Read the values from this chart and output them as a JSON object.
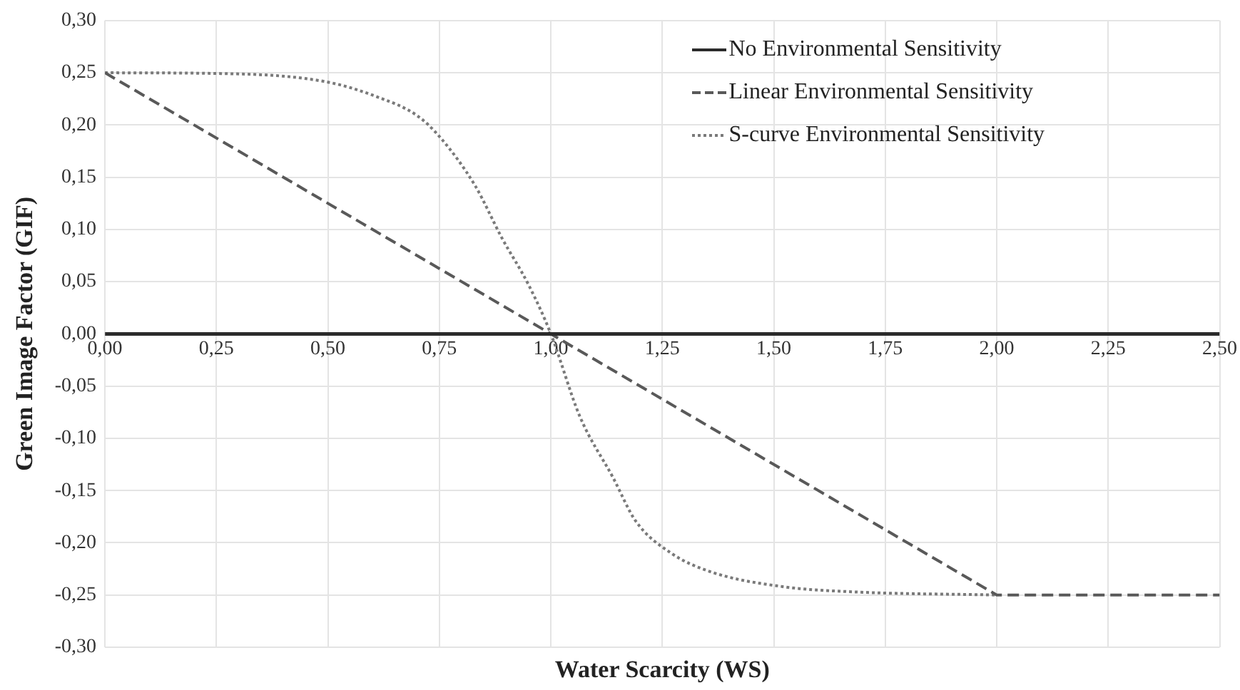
{
  "chart_data": {
    "type": "line",
    "xlabel": "Water Scarcity (WS)",
    "ylabel": "Green Image Factor (GIF)",
    "xlim": [
      0,
      2.5
    ],
    "ylim": [
      -0.3,
      0.3
    ],
    "xticks": [
      {
        "value": 0,
        "label": "0,00"
      },
      {
        "value": 0.25,
        "label": "0,25"
      },
      {
        "value": 0.5,
        "label": "0,50"
      },
      {
        "value": 0.75,
        "label": "0,75"
      },
      {
        "value": 1,
        "label": "1,00"
      },
      {
        "value": 1.25,
        "label": "1,25"
      },
      {
        "value": 1.5,
        "label": "1,50"
      },
      {
        "value": 1.75,
        "label": "1,75"
      },
      {
        "value": 2,
        "label": "2,00"
      },
      {
        "value": 2.25,
        "label": "2,25"
      },
      {
        "value": 2.5,
        "label": "2,50"
      }
    ],
    "yticks": [
      {
        "value": -0.3,
        "label": "-0,30"
      },
      {
        "value": -0.25,
        "label": "-0,25"
      },
      {
        "value": -0.2,
        "label": "-0,20"
      },
      {
        "value": -0.15,
        "label": "-0,15"
      },
      {
        "value": -0.1,
        "label": "-0,10"
      },
      {
        "value": -0.05,
        "label": "-0,05"
      },
      {
        "value": 0,
        "label": "0,00"
      },
      {
        "value": 0.05,
        "label": "0,05"
      },
      {
        "value": 0.1,
        "label": "0,10"
      },
      {
        "value": 0.15,
        "label": "0,15"
      },
      {
        "value": 0.2,
        "label": "0,20"
      },
      {
        "value": 0.25,
        "label": "0,25"
      },
      {
        "value": 0.3,
        "label": "0,30"
      }
    ],
    "grid": true,
    "legend": "top right",
    "marker": "none",
    "series": [
      {
        "name": "No Environmental Sensitivity",
        "color": "#2b2b2b",
        "line_style": "solid",
        "x": [
          0,
          2.5
        ],
        "values": [
          0,
          0
        ]
      },
      {
        "name": "Linear Environmental Sensitivity",
        "color": "#595959",
        "line_style": "dashed",
        "x": [
          0,
          2,
          2.5
        ],
        "values": [
          0.25,
          -0.25,
          -0.25
        ]
      },
      {
        "name": "S-curve Environmental Sensitivity",
        "color": "#7a7a7a",
        "line_style": "dotted",
        "x": [
          0,
          0.29,
          0.5,
          0.61,
          0.7,
          0.75,
          0.83,
          0.89,
          0.95,
          1,
          1.065,
          1.14,
          1.19,
          1.27,
          1.36,
          1.52,
          1.68,
          2
        ],
        "values": [
          0.25,
          0.249,
          0.241,
          0.227,
          0.209,
          0.189,
          0.142,
          0.092,
          0.047,
          0,
          -0.079,
          -0.138,
          -0.179,
          -0.21,
          -0.228,
          -0.242,
          -0.247,
          -0.25
        ]
      }
    ]
  }
}
